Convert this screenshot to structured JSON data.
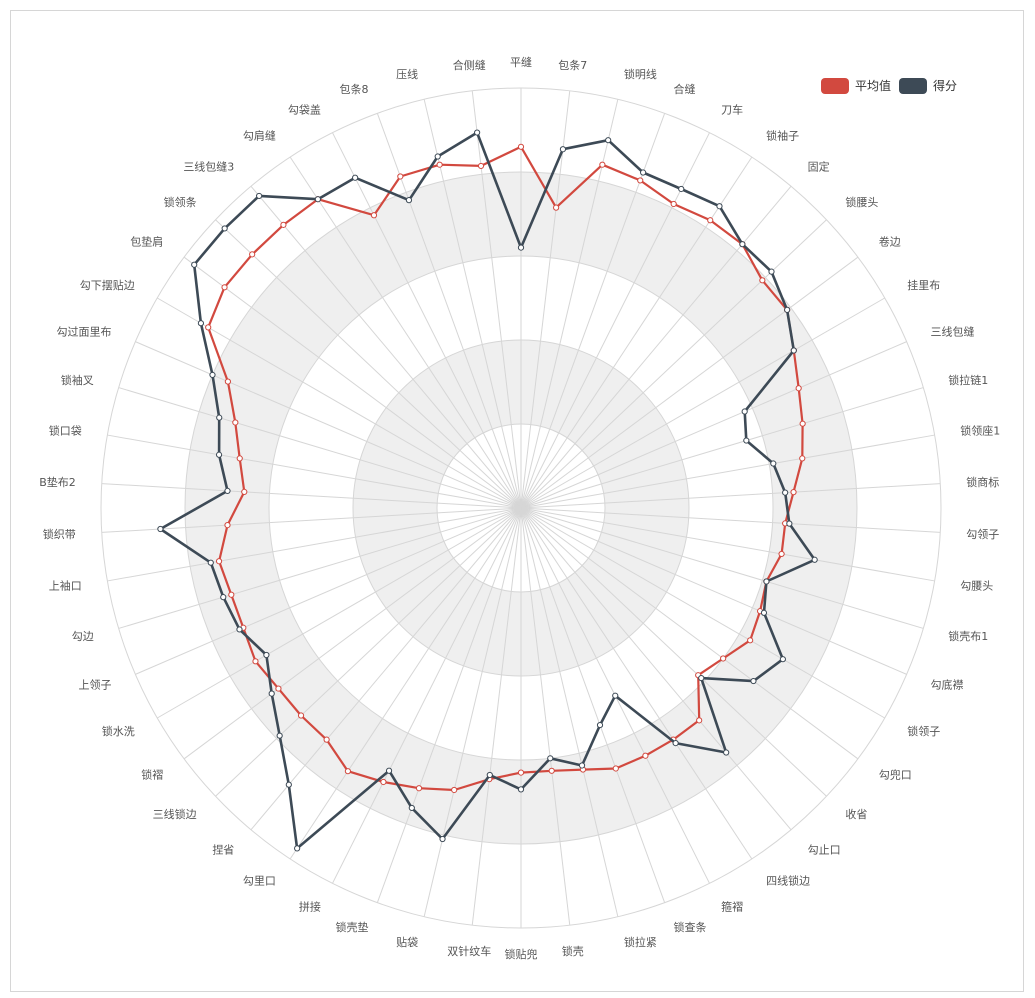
{
  "legend": {
    "avg_label": "平均值",
    "score_label": "得分"
  },
  "colors": {
    "avg": "#d2493f",
    "score": "#3d4a56",
    "band": "#efefef",
    "grid": "#d6d6d6"
  },
  "chart_data": {
    "type": "radar",
    "max": 100,
    "axes": [
      "平缝",
      "包条7",
      "锁明线",
      "合缝",
      "刀车",
      "锁袖子",
      "固定",
      "锁腰头",
      "卷边",
      "挂里布",
      "三线包缝",
      "锁拉链1",
      "锁领座1",
      "锁商标",
      "勾领子",
      "勾腰头",
      "锁壳布1",
      "勾底襟",
      "锁领子",
      "勾兜口",
      "收省",
      "勾止口",
      "四线锁边",
      "箍褶",
      "锁查条",
      "锁拉紧",
      "锁壳",
      "锁贴兜",
      "双针纹车",
      "贴袋",
      "锁壳垫",
      "拼接",
      "勾里口",
      "捏省",
      "三线锁边",
      "锁褶",
      "锁水洗",
      "上领子",
      "勾边",
      "上袖口",
      "锁织带",
      "B垫布2",
      "锁口袋",
      "锁袖叉",
      "勾过面里布",
      "勾下摆贴边",
      "包垫肩",
      "锁领条",
      "三线包缝3",
      "勾肩缝",
      "勾袋盖",
      "包条8",
      "压线",
      "合侧缝"
    ],
    "series": [
      {
        "name": "平均值",
        "values": [
          86,
          72,
          84,
          83,
          81,
          82,
          82,
          79,
          79,
          75,
          72,
          70,
          68,
          65,
          63,
          63,
          61,
          62,
          63,
          60,
          58,
          66,
          66,
          66,
          66,
          64,
          63,
          63,
          65,
          69,
          71,
          73,
          75,
          72,
          72,
          72,
          73,
          72,
          72,
          73,
          70,
          66,
          68,
          71,
          76,
          86,
          88,
          88,
          88,
          88,
          78,
          84,
          84,
          82
        ]
      },
      {
        "name": "得分",
        "values": [
          62,
          86,
          90,
          85,
          85,
          86,
          82,
          82,
          79,
          75,
          58,
          56,
          61,
          63,
          64,
          71,
          61,
          63,
          72,
          69,
          59,
          76,
          67,
          50,
          55,
          63,
          60,
          67,
          64,
          81,
          76,
          70,
          97,
          86,
          79,
          74,
          70,
          73,
          74,
          75,
          86,
          70,
          73,
          75,
          80,
          88,
          97,
          97,
          97,
          88,
          88,
          78,
          86,
          90
        ]
      }
    ]
  }
}
